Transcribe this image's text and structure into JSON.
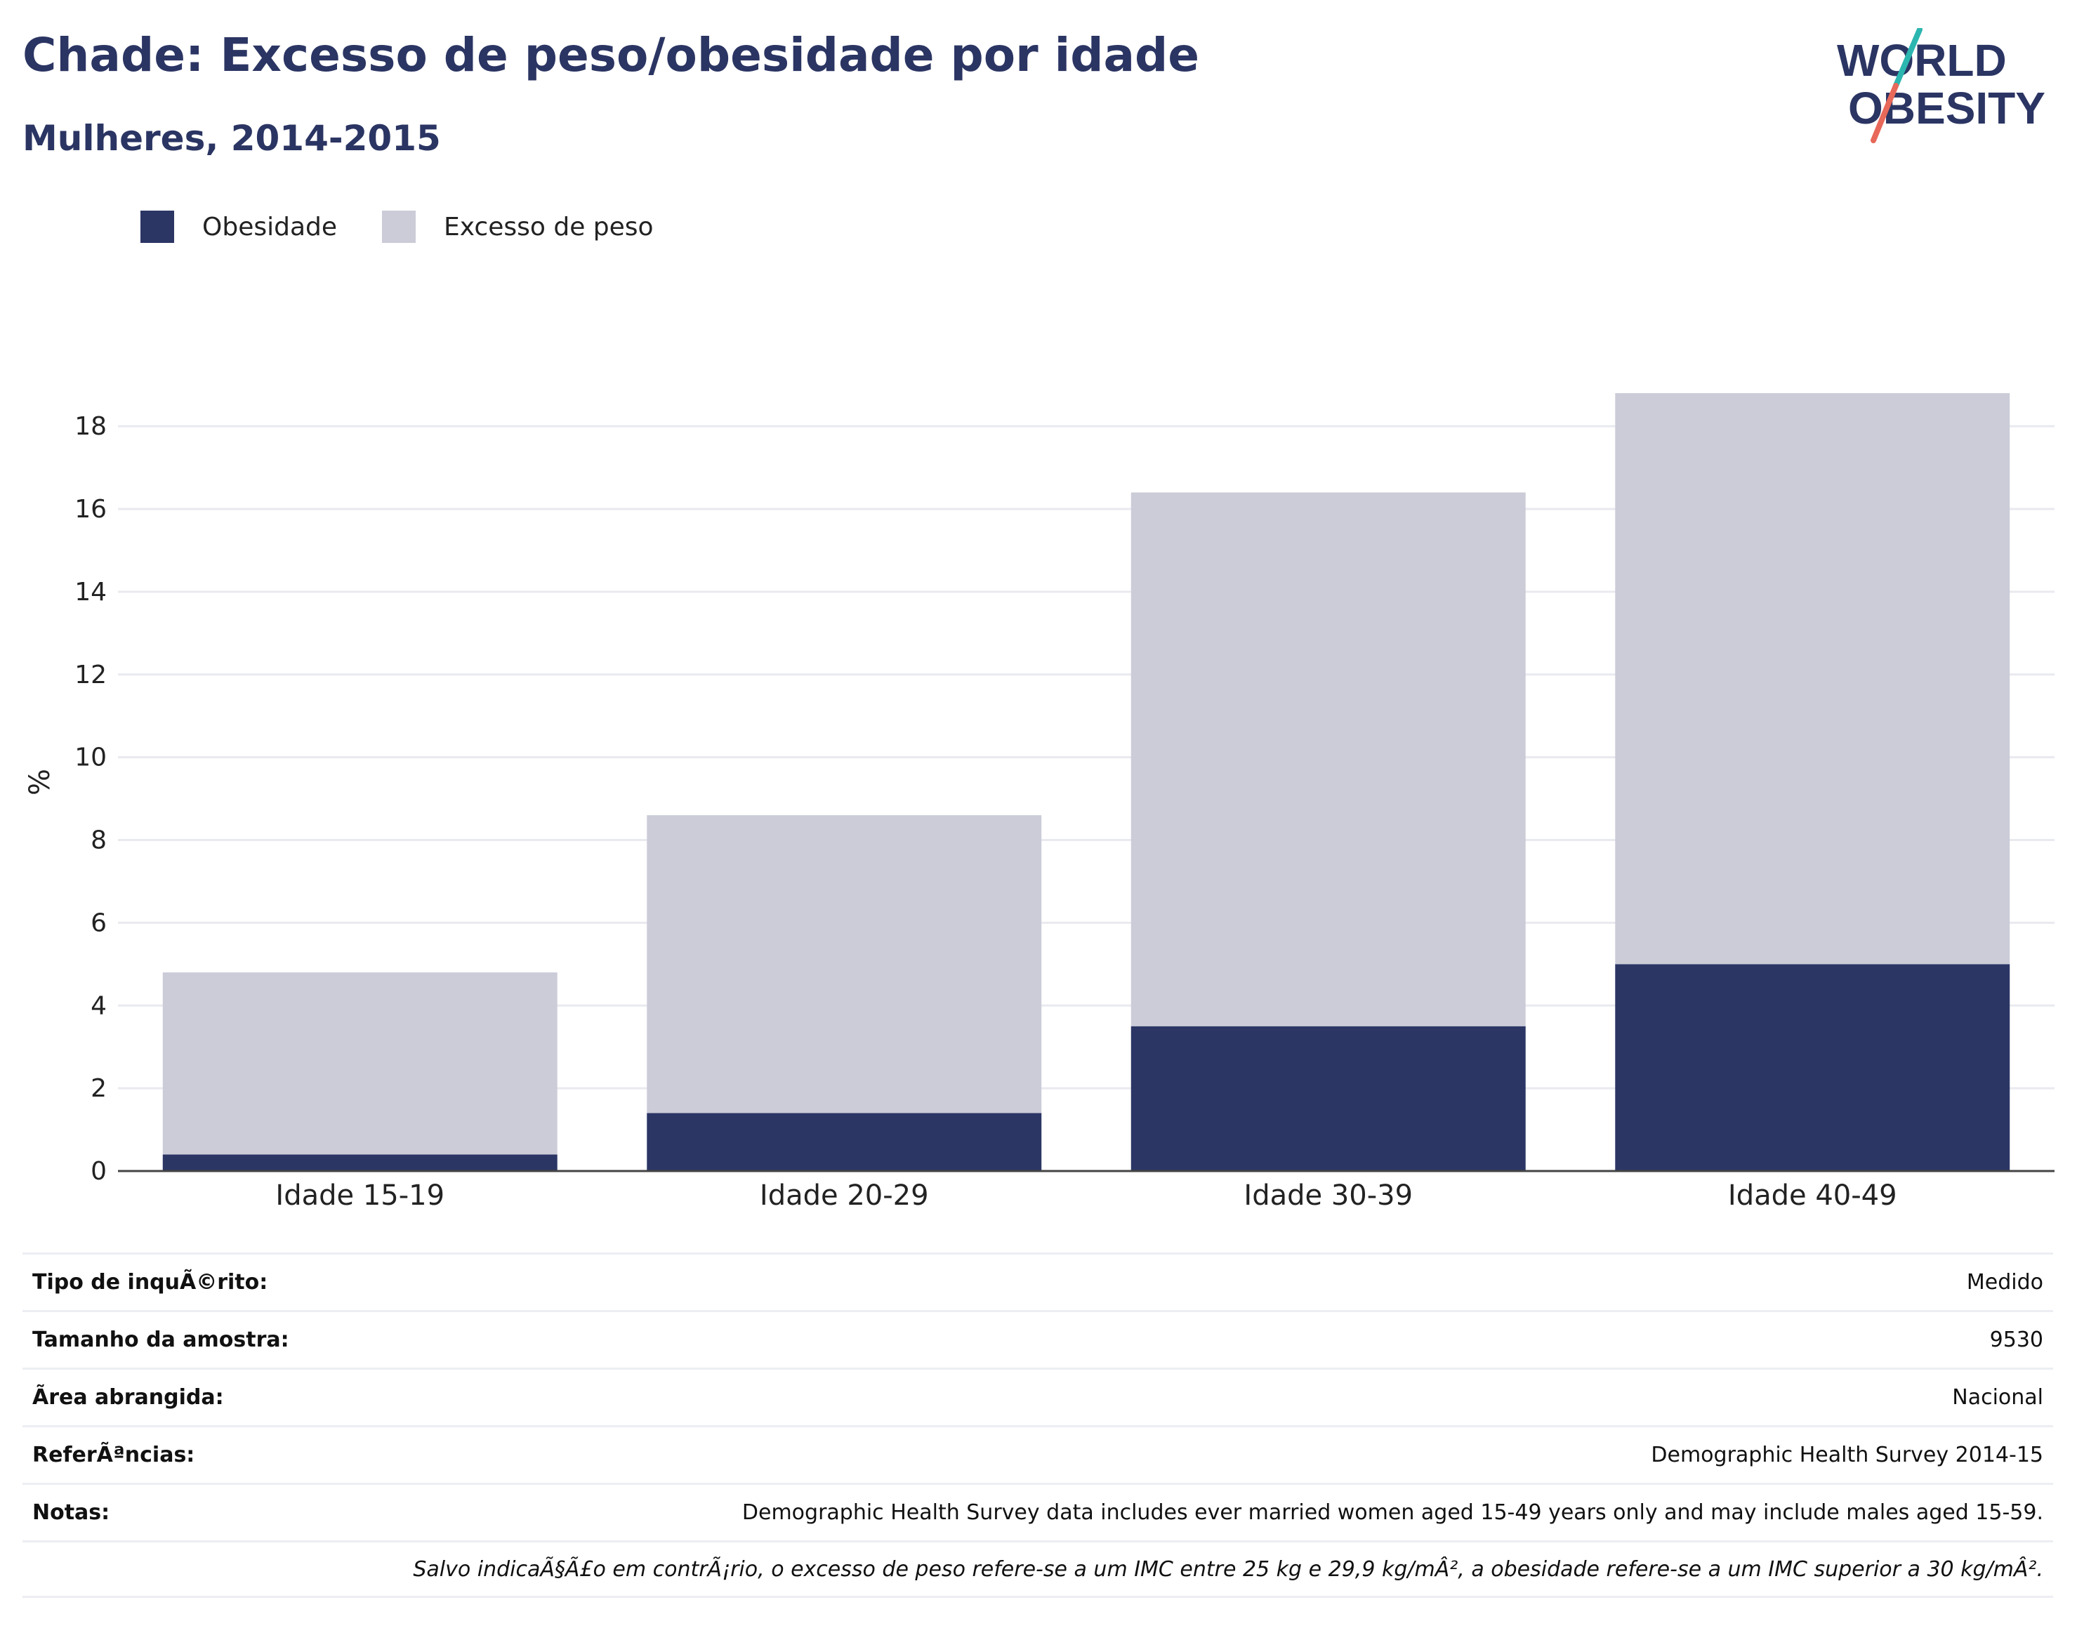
{
  "header": {
    "title": "Chade: Excesso de peso/obesidade por idade",
    "subtitle": "Mulheres, 2014-2015"
  },
  "logo": {
    "line1": "WORLD",
    "line2": "OBESITY"
  },
  "legend": [
    {
      "label": "Obesidade",
      "color": "#2b3665"
    },
    {
      "label": "Excesso de peso",
      "color": "#cbccd8"
    }
  ],
  "chart_data": {
    "type": "bar",
    "stacked": true,
    "categories": [
      "Idade 15-19",
      "Idade 20-29",
      "Idade 30-39",
      "Idade 40-49"
    ],
    "series": [
      {
        "name": "Obesidade",
        "values": [
          0.4,
          1.4,
          3.5,
          5.0
        ],
        "color": "#2b3665"
      },
      {
        "name": "Excesso de peso",
        "values": [
          4.4,
          7.2,
          12.9,
          13.8
        ],
        "color": "#cbccd8"
      }
    ],
    "ylabel": "%",
    "ylim": [
      0,
      18.8
    ],
    "yticks": [
      0,
      2,
      4,
      6,
      8,
      10,
      12,
      14,
      16,
      18
    ],
    "grid": true,
    "legend_position": "top-left"
  },
  "info": [
    {
      "label": "Tipo de inquÃ©rito:",
      "value": "Medido"
    },
    {
      "label": "Tamanho da amostra:",
      "value": "9530"
    },
    {
      "label": "Ã\u001frea abrangida:",
      "value": "Nacional"
    },
    {
      "label": "ReferÃªncias:",
      "value": "Demographic Health Survey 2014-15"
    },
    {
      "label": "Notas:",
      "value": "Demographic Health Survey data includes ever married women aged 15-49 years only and may include males aged 15-59."
    }
  ],
  "footnote": "Salvo indicaÃ§Ã£o em contrÃ¡rio, o excesso de peso refere-se a um IMC entre 25 kg e 29,9 kg/mÂ², a obesidade refere-se a um IMC superior a 30 kg/mÂ²."
}
